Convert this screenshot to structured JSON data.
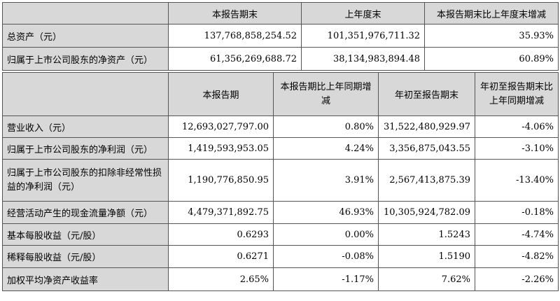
{
  "table1": {
    "headers": [
      "",
      "本报告期末",
      "上年度末",
      "本报告期末比上年度末增减"
    ],
    "rows": [
      {
        "label": "总资产（元）",
        "cells": [
          "137,768,858,254.52",
          "101,351,976,711.32",
          "35.93%"
        ]
      },
      {
        "label": "归属于上市公司股东的净资产（元）",
        "cells": [
          "61,356,269,688.72",
          "38,134,983,894.48",
          "60.89%"
        ]
      }
    ]
  },
  "table2": {
    "headers": [
      "",
      "本报告期",
      "本报告期比上年同期增减",
      "年初至报告期末",
      "年初至报告期末比上年同期增减"
    ],
    "rows": [
      {
        "label": "营业收入（元）",
        "cells": [
          "12,693,027,797.00",
          "0.80%",
          "31,522,480,929.97",
          "-4.06%"
        ]
      },
      {
        "label": "归属于上市公司股东的净利润（元）",
        "cells": [
          "1,419,593,953.05",
          "4.24%",
          "3,356,875,043.55",
          "-3.10%"
        ]
      },
      {
        "label": "归属于上市公司股东的扣除非经常性损益的净利润（元）",
        "cells": [
          "1,190,776,850.95",
          "3.91%",
          "2,567,413,875.39",
          "-13.40%"
        ]
      },
      {
        "label": "经营活动产生的现金流量净额（元）",
        "cells": [
          "4,479,371,892.75",
          "46.93%",
          "10,305,924,782.09",
          "-0.18%"
        ]
      },
      {
        "label": "基本每股收益（元/股）",
        "cells": [
          "0.6293",
          "0.00%",
          "1.5243",
          "-4.74%"
        ]
      },
      {
        "label": "稀释每股收益（元/股）",
        "cells": [
          "0.6271",
          "-0.08%",
          "1.5190",
          "-4.82%"
        ]
      },
      {
        "label": "加权平均净资产收益率",
        "cells": [
          "2.65%",
          "-1.17%",
          "7.62%",
          "-2.26%"
        ]
      }
    ]
  }
}
